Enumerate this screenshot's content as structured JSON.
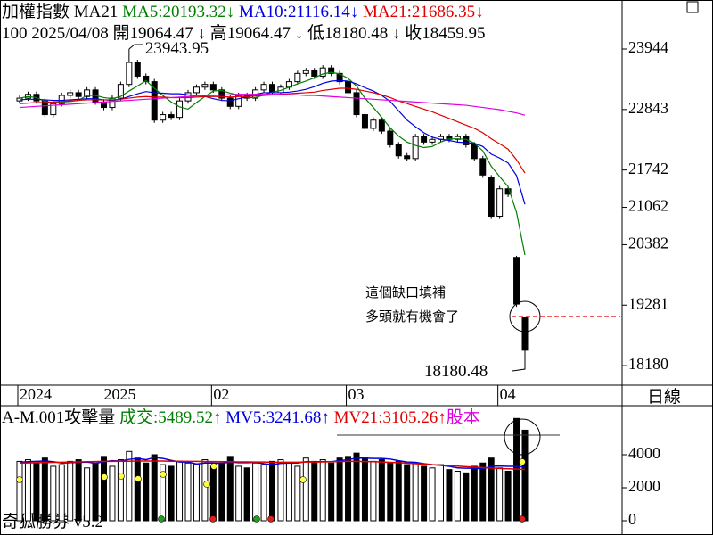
{
  "chart_data": [
    {
      "type": "candlestick",
      "title": "加權指數",
      "indicator": "MA21",
      "info": "100 2025/04/08 開19064.47 ↓ 高19064.47 ↓ 低18180.48 ↓ 收18459.95",
      "period": "日線",
      "categories": [
        "2024",
        null,
        null,
        null,
        null,
        null,
        null,
        null,
        null,
        null,
        "2025",
        null,
        null,
        null,
        null,
        null,
        null,
        null,
        null,
        null,
        null,
        null,
        null,
        "02",
        null,
        null,
        null,
        null,
        null,
        null,
        null,
        null,
        null,
        null,
        null,
        null,
        null,
        null,
        null,
        "03",
        null,
        null,
        null,
        null,
        null,
        null,
        null,
        null,
        null,
        null,
        null,
        null,
        null,
        null,
        null,
        null,
        null,
        "04",
        null,
        null,
        null
      ],
      "open": [
        23000,
        23050,
        23120,
        23000,
        22750,
        22950,
        23100,
        23150,
        23080,
        23200,
        22980,
        22880,
        23050,
        23300,
        23700,
        23450,
        23350,
        22650,
        22750,
        22700,
        23000,
        23150,
        23250,
        23300,
        23200,
        23050,
        22900,
        23100,
        23050,
        23200,
        23300,
        23150,
        23250,
        23350,
        23500,
        23550,
        23450,
        23600,
        23500,
        23350,
        23150,
        22750,
        22500,
        22650,
        22450,
        22200,
        22000,
        21950,
        22350,
        22250,
        22300,
        22350,
        22300,
        22350,
        22200,
        21950,
        21600,
        20900,
        21400,
        20150,
        19064.47
      ],
      "high": [
        23100,
        23170,
        23170,
        23050,
        23000,
        23150,
        23200,
        23200,
        23250,
        23250,
        23030,
        23100,
        23350,
        23943.95,
        23750,
        23500,
        23400,
        22800,
        22800,
        23050,
        23200,
        23300,
        23350,
        23350,
        23250,
        23100,
        23150,
        23150,
        23250,
        23350,
        23350,
        23300,
        23400,
        23550,
        23600,
        23600,
        23650,
        23650,
        23550,
        23400,
        23200,
        22800,
        22700,
        22700,
        22500,
        22250,
        22050,
        22400,
        22400,
        22350,
        22400,
        22400,
        22400,
        22400,
        22250,
        22000,
        21650,
        21450,
        21450,
        20180,
        19064.47
      ],
      "low": [
        22950,
        23000,
        22950,
        22700,
        22700,
        22900,
        23050,
        23030,
        23030,
        22930,
        22830,
        22830,
        23000,
        23250,
        23400,
        23300,
        22600,
        22600,
        22650,
        22650,
        22950,
        23100,
        23200,
        23150,
        23000,
        22850,
        22850,
        23000,
        23000,
        23150,
        23100,
        23100,
        23200,
        23300,
        23450,
        23400,
        23400,
        23450,
        23300,
        23100,
        22700,
        22450,
        22450,
        22400,
        22150,
        21950,
        21900,
        21900,
        22200,
        22200,
        22250,
        22250,
        22250,
        22150,
        21900,
        21600,
        20850,
        20850,
        21250,
        19250,
        18180.48
      ],
      "close": [
        23050,
        23120,
        23000,
        22750,
        22950,
        23100,
        23150,
        23080,
        23200,
        22980,
        22880,
        23050,
        23300,
        23700,
        23450,
        23350,
        22650,
        22750,
        22700,
        23000,
        23150,
        23250,
        23300,
        23200,
        23050,
        22900,
        23100,
        23050,
        23200,
        23300,
        23150,
        23250,
        23350,
        23500,
        23550,
        23450,
        23600,
        23500,
        23350,
        23150,
        22750,
        22500,
        22650,
        22450,
        22200,
        22000,
        21950,
        22350,
        22250,
        22300,
        22350,
        22300,
        22350,
        22200,
        21950,
        21650,
        20900,
        21400,
        21300,
        19300,
        18459.95
      ],
      "series": [
        {
          "name": "MA5:20193.32",
          "trend": "↓",
          "color": "#008000",
          "values": [
            23050,
            23080,
            23060,
            22990,
            22970,
            22980,
            22990,
            23010,
            23100,
            23100,
            23060,
            23040,
            23080,
            23180,
            23270,
            23370,
            23230,
            23100,
            22980,
            22890,
            22850,
            22970,
            23080,
            23180,
            23190,
            23140,
            23110,
            23060,
            23060,
            23110,
            23160,
            23190,
            23250,
            23310,
            23360,
            23420,
            23490,
            23520,
            23490,
            23410,
            23270,
            23050,
            22880,
            22700,
            22510,
            22360,
            22250,
            22190,
            22150,
            22170,
            22250,
            22310,
            22310,
            22300,
            22230,
            22090,
            21810,
            21620,
            21440,
            20970,
            20193.32
          ]
        },
        {
          "name": "MA10:21116.14",
          "trend": "↓",
          "color": "#0000e0",
          "values": [
            23020,
            23030,
            23030,
            23020,
            23010,
            23010,
            23020,
            23030,
            23040,
            23040,
            23020,
            23010,
            23030,
            23080,
            23130,
            23170,
            23150,
            23140,
            23130,
            23130,
            23110,
            23100,
            23080,
            23040,
            23010,
            23000,
            23040,
            23070,
            23120,
            23150,
            23150,
            23150,
            23160,
            23180,
            23210,
            23260,
            23320,
            23360,
            23370,
            23360,
            23310,
            23240,
            23180,
            23100,
            22990,
            22820,
            22650,
            22530,
            22420,
            22340,
            22300,
            22280,
            22250,
            22240,
            22230,
            22170,
            22030,
            21960,
            21870,
            21640,
            21116.14
          ]
        },
        {
          "name": "MA21:21686.35",
          "trend": "↓",
          "color": "#e00000",
          "values": [
            22950,
            22960,
            22970,
            22970,
            22980,
            22990,
            23000,
            23010,
            23020,
            23020,
            23020,
            23020,
            23030,
            23050,
            23070,
            23080,
            23070,
            23070,
            23060,
            23060,
            23060,
            23070,
            23080,
            23080,
            23080,
            23070,
            23080,
            23080,
            23090,
            23100,
            23110,
            23120,
            23130,
            23140,
            23150,
            23160,
            23190,
            23210,
            23230,
            23230,
            23210,
            23180,
            23150,
            23110,
            23060,
            23000,
            22950,
            22900,
            22850,
            22800,
            22740,
            22680,
            22620,
            22560,
            22500,
            22420,
            22310,
            22220,
            22120,
            21930,
            21686.35
          ]
        },
        {
          "color": "#e000e0",
          "values": [
            22880,
            22890,
            22900,
            22910,
            22920,
            22930,
            22940,
            22950,
            22960,
            22970,
            22980,
            22990,
            23000,
            23010,
            23020,
            23030,
            23040,
            23050,
            23060,
            23070,
            23080,
            23090,
            23100,
            23100,
            23110,
            23110,
            23120,
            23120,
            23120,
            23120,
            23120,
            23120,
            23110,
            23110,
            23100,
            23100,
            23090,
            23080,
            23070,
            23060,
            23050,
            23040,
            23030,
            23020,
            23010,
            23000,
            22990,
            22980,
            22970,
            22960,
            22950,
            22940,
            22930,
            22920,
            22900,
            22880,
            22860,
            22840,
            22810,
            22780,
            22740
          ]
        }
      ],
      "ylim": [
        17824,
        24837
      ],
      "yticks": [
        23944,
        22843,
        21742,
        21062,
        20382,
        19281,
        18180
      ],
      "annotations": [
        "23943.95",
        "18180.48",
        "這個缺口填補",
        "多頭就有機會了"
      ]
    },
    {
      "type": "bar",
      "title": "A-M.001攻擊量",
      "value_name": "成交:5489.52",
      "value_trend": "↑",
      "value_color": "#008000",
      "values": [
        3600,
        3700,
        3500,
        3800,
        3300,
        3400,
        3600,
        3700,
        3200,
        3500,
        3900,
        3300,
        3700,
        4200,
        3800,
        3500,
        4000,
        3400,
        3300,
        3600,
        3500,
        3400,
        3700,
        3300,
        3500,
        3900,
        3300,
        3200,
        3500,
        3400,
        3600,
        3700,
        3500,
        3300,
        3800,
        3600,
        3700,
        3500,
        3800,
        3900,
        4100,
        3800,
        3600,
        3700,
        3500,
        3600,
        3400,
        3500,
        3300,
        3200,
        3400,
        3100,
        3000,
        2900,
        3300,
        3500,
        3800,
        3200,
        3000,
        6200,
        5489.52
      ],
      "series": [
        {
          "name": "MV5:3241.68",
          "trend": "↑",
          "color": "#0000e0",
          "values": [
            3550,
            3580,
            3600,
            3620,
            3580,
            3500,
            3520,
            3540,
            3560,
            3480,
            3580,
            3640,
            3620,
            3720,
            3780,
            3700,
            3840,
            3780,
            3660,
            3560,
            3560,
            3440,
            3500,
            3500,
            3480,
            3560,
            3520,
            3520,
            3540,
            3460,
            3400,
            3480,
            3500,
            3500,
            3580,
            3580,
            3580,
            3580,
            3640,
            3700,
            3800,
            3800,
            3780,
            3780,
            3740,
            3640,
            3560,
            3540,
            3460,
            3400,
            3360,
            3300,
            3200,
            3180,
            3180,
            3140,
            3300,
            3320,
            3300,
            3300,
            3241.68
          ]
        },
        {
          "name": "MV21:3105.26",
          "trend": "↑",
          "color": "#e00000",
          "values": [
            3500,
            3510,
            3520,
            3530,
            3540,
            3550,
            3560,
            3570,
            3580,
            3590,
            3600,
            3600,
            3610,
            3610,
            3620,
            3620,
            3620,
            3620,
            3610,
            3610,
            3600,
            3600,
            3590,
            3590,
            3580,
            3580,
            3570,
            3570,
            3560,
            3560,
            3550,
            3550,
            3550,
            3550,
            3560,
            3560,
            3570,
            3580,
            3590,
            3600,
            3600,
            3590,
            3580,
            3560,
            3540,
            3520,
            3490,
            3460,
            3430,
            3400,
            3370,
            3340,
            3310,
            3280,
            3250,
            3220,
            3190,
            3170,
            3150,
            3130,
            3105.26
          ]
        }
      ],
      "extra_legend": "股本",
      "extra_color": "#e000e0",
      "ylim": [
        -757,
        6865
      ],
      "yticks": [
        0,
        2000,
        4000
      ]
    }
  ],
  "footer": "奇狐勝券 v5.2"
}
